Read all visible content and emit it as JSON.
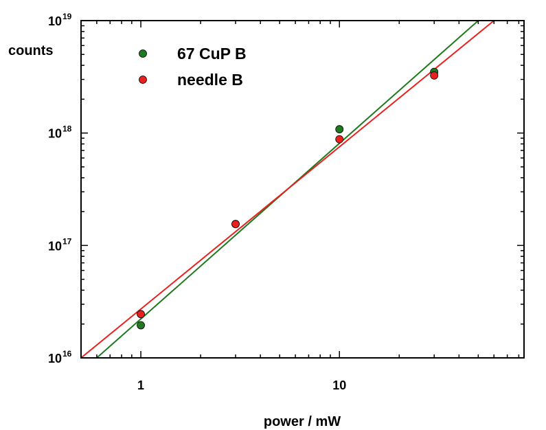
{
  "chart_data": {
    "type": "scatter",
    "xlabel": "power / mW",
    "ylabel": "counts",
    "x_scale": "log",
    "y_scale": "log",
    "xlim": [
      0.5,
      85
    ],
    "ylim": [
      1e+16,
      1e+19
    ],
    "x_ticks": [
      {
        "value": 1,
        "label": "1"
      },
      {
        "value": 10,
        "label": "10"
      }
    ],
    "y_ticks": [
      {
        "value": 1e+16,
        "base": "10",
        "exp": "16"
      },
      {
        "value": 1e+17,
        "base": "10",
        "exp": "17"
      },
      {
        "value": 1e+18,
        "base": "10",
        "exp": "18"
      },
      {
        "value": 1e+19,
        "base": "10",
        "exp": "19"
      }
    ],
    "grid": false,
    "legend_position": "top-left",
    "series": [
      {
        "name": "67 CuP B",
        "color": "#1e7a1e",
        "points": [
          {
            "x": 1,
            "y": 1.95e+16
          },
          {
            "x": 3,
            "y": 1.55e+17
          },
          {
            "x": 10,
            "y": 1.08e+18
          },
          {
            "x": 30,
            "y": 3.5e+18
          }
        ],
        "fit": {
          "type": "power-law",
          "from": [
            0.6,
            1e+16
          ],
          "to": [
            50,
            1e+19
          ]
        }
      },
      {
        "name": "needle B",
        "color": "#e8201e",
        "points": [
          {
            "x": 1,
            "y": 2.45e+16
          },
          {
            "x": 3,
            "y": 1.55e+17
          },
          {
            "x": 10,
            "y": 8.8e+17
          },
          {
            "x": 30,
            "y": 3.25e+18
          }
        ],
        "fit": {
          "type": "power-law",
          "from": [
            0.5,
            1e+16
          ],
          "to": [
            60,
            1e+19
          ]
        }
      }
    ]
  }
}
